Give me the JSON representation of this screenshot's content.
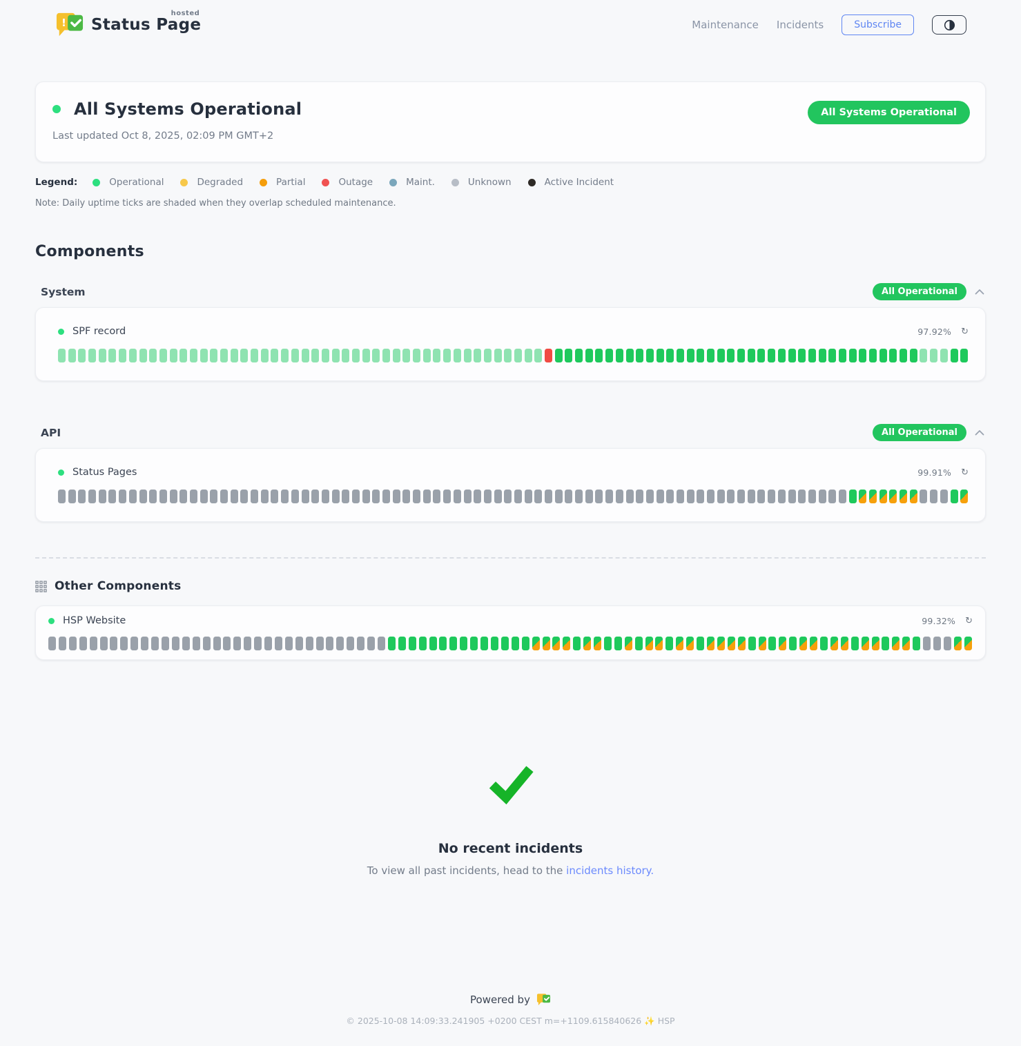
{
  "header": {
    "logo_hosted": "hosted",
    "logo_brand": "Status Page",
    "nav": [
      {
        "label": "Maintenance"
      },
      {
        "label": "Incidents"
      }
    ],
    "subscribe_label": "Subscribe"
  },
  "banner": {
    "title": "All Systems Operational",
    "last_updated": "Last updated Oct 8, 2025, 02:09 PM GMT+2",
    "badge": "All Systems Operational"
  },
  "legend": {
    "label": "Legend:",
    "items": [
      {
        "label": "Operational",
        "color": "#2ddf7f"
      },
      {
        "label": "Degraded",
        "color": "#f7c84a"
      },
      {
        "label": "Partial",
        "color": "#f59e0b"
      },
      {
        "label": "Outage",
        "color": "#f05252"
      },
      {
        "label": "Maint.",
        "color": "#7ba7bc"
      },
      {
        "label": "Unknown",
        "color": "#b7bdc6"
      },
      {
        "label": "Active Incident",
        "color": "#2e2a26"
      }
    ],
    "note": "Note: Daily uptime ticks are shaded when they overlap scheduled maintenance."
  },
  "components": {
    "heading": "Components",
    "groups": [
      {
        "name": "System",
        "badge": "All Operational",
        "items": [
          {
            "name": "SPF record",
            "uptime": "97.92%",
            "tick_segments": [
              [
                "s",
                48
              ],
              [
                "x",
                1
              ],
              [
                "o",
                36
              ],
              [
                "s",
                3
              ],
              [
                "o",
                2
              ]
            ]
          }
        ]
      },
      {
        "name": "API",
        "badge": "All Operational",
        "items": [
          {
            "name": "Status Pages",
            "uptime": "99.91%",
            "tick_segments": [
              [
                "u",
                78
              ],
              [
                "o",
                1
              ],
              [
                "m",
                6
              ],
              [
                "u",
                3
              ],
              [
                "o",
                1
              ],
              [
                "m",
                1
              ]
            ]
          }
        ]
      }
    ],
    "other": {
      "heading": "Other Components",
      "items": [
        {
          "name": "HSP Website",
          "uptime": "99.32%",
          "tick_segments": [
            [
              "u",
              33
            ],
            [
              "o",
              14
            ],
            [
              "m",
              4
            ],
            [
              "o",
              1
            ],
            [
              "m",
              2
            ],
            [
              "o",
              2
            ],
            [
              "m",
              1
            ],
            [
              "o",
              1
            ],
            [
              "m",
              2
            ],
            [
              "o",
              1
            ],
            [
              "m",
              2
            ],
            [
              "o",
              1
            ],
            [
              "m",
              4
            ],
            [
              "o",
              1
            ],
            [
              "m",
              1
            ],
            [
              "o",
              1
            ],
            [
              "m",
              1
            ],
            [
              "o",
              1
            ],
            [
              "m",
              2
            ],
            [
              "o",
              1
            ],
            [
              "m",
              2
            ],
            [
              "o",
              1
            ],
            [
              "m",
              2
            ],
            [
              "o",
              1
            ],
            [
              "m",
              2
            ],
            [
              "o",
              1
            ],
            [
              "u",
              3
            ],
            [
              "m",
              2
            ]
          ]
        }
      ]
    }
  },
  "incidents": {
    "title": "No recent incidents",
    "subtext_prefix": "To view all past incidents, head to the ",
    "link_label": "incidents history."
  },
  "footer": {
    "powered_by": "Powered by",
    "copyright": "© 2025-10-08 14:09:33.241905 +0200 CEST m=+1109.615840626 ✨ HSP"
  },
  "colors": {
    "badge_green": "#22c55e",
    "status_dot_green": "#2ddf7f",
    "tick_operational": "#1ec95c",
    "tick_shaded": "#8fe3b1",
    "tick_outage": "#f04b43",
    "tick_unknown": "#9aa1aa",
    "tick_degraded_orange": "#f6a00c",
    "link_blue": "#6b8afd",
    "subscribe_blue": "#5f86f2",
    "check_green": "#16b428"
  },
  "tick_legend_codes": {
    "o": "operational",
    "s": "operational-shaded",
    "x": "outage",
    "u": "unknown",
    "m": "operational-degraded-mixed"
  }
}
